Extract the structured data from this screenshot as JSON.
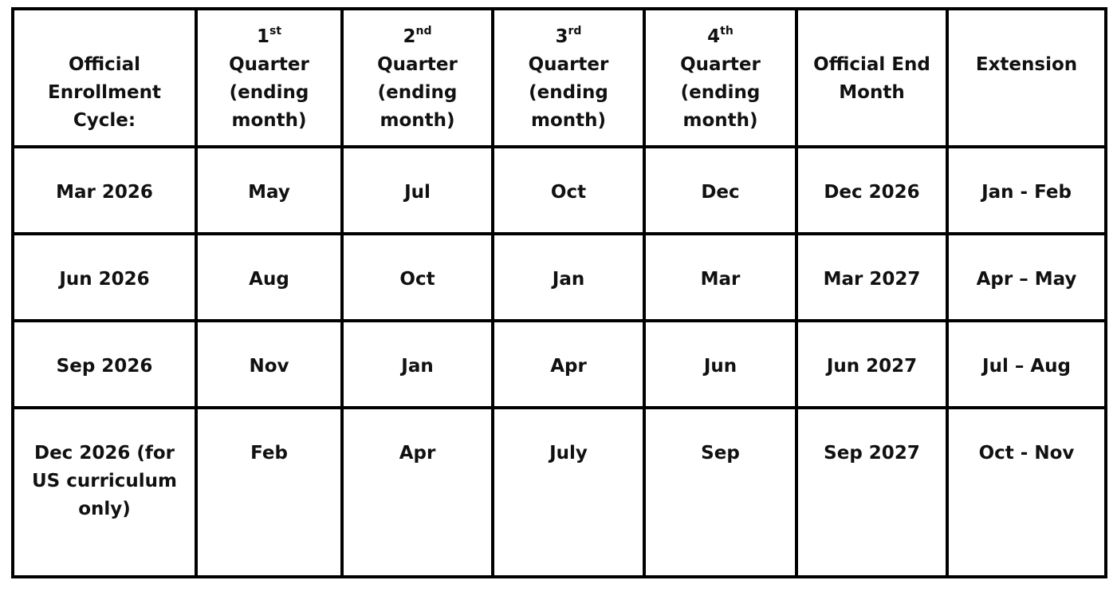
{
  "headers": [
    {
      "ordinal": "",
      "sup": "",
      "label": "Official Enrollment Cycle:"
    },
    {
      "ordinal": "1",
      "sup": "st",
      "label": "Quarter (ending month)"
    },
    {
      "ordinal": "2",
      "sup": "nd",
      "label": "Quarter (ending month)"
    },
    {
      "ordinal": "3",
      "sup": "rd",
      "label": "Quarter (ending month)"
    },
    {
      "ordinal": "4",
      "sup": "th",
      "label": "Quarter (ending month)"
    },
    {
      "ordinal": "",
      "sup": "",
      "label": "Official End Month"
    },
    {
      "ordinal": "",
      "sup": "",
      "label": "Extension"
    }
  ],
  "rows": [
    [
      "Mar 2026",
      "May",
      "Jul",
      "Oct",
      "Dec",
      "Dec 2026",
      "Jan - Feb"
    ],
    [
      "Jun 2026",
      "Aug",
      "Oct",
      "Jan",
      "Mar",
      "Mar 2027",
      "Apr – May"
    ],
    [
      "Sep 2026",
      "Nov",
      "Jan",
      "Apr",
      "Jun",
      "Jun 2027",
      "Jul – Aug"
    ],
    [
      "Dec 2026 (for US curriculum only)",
      "Feb",
      "Apr",
      "July",
      "Sep",
      "Sep 2027",
      "Oct - Nov"
    ]
  ]
}
